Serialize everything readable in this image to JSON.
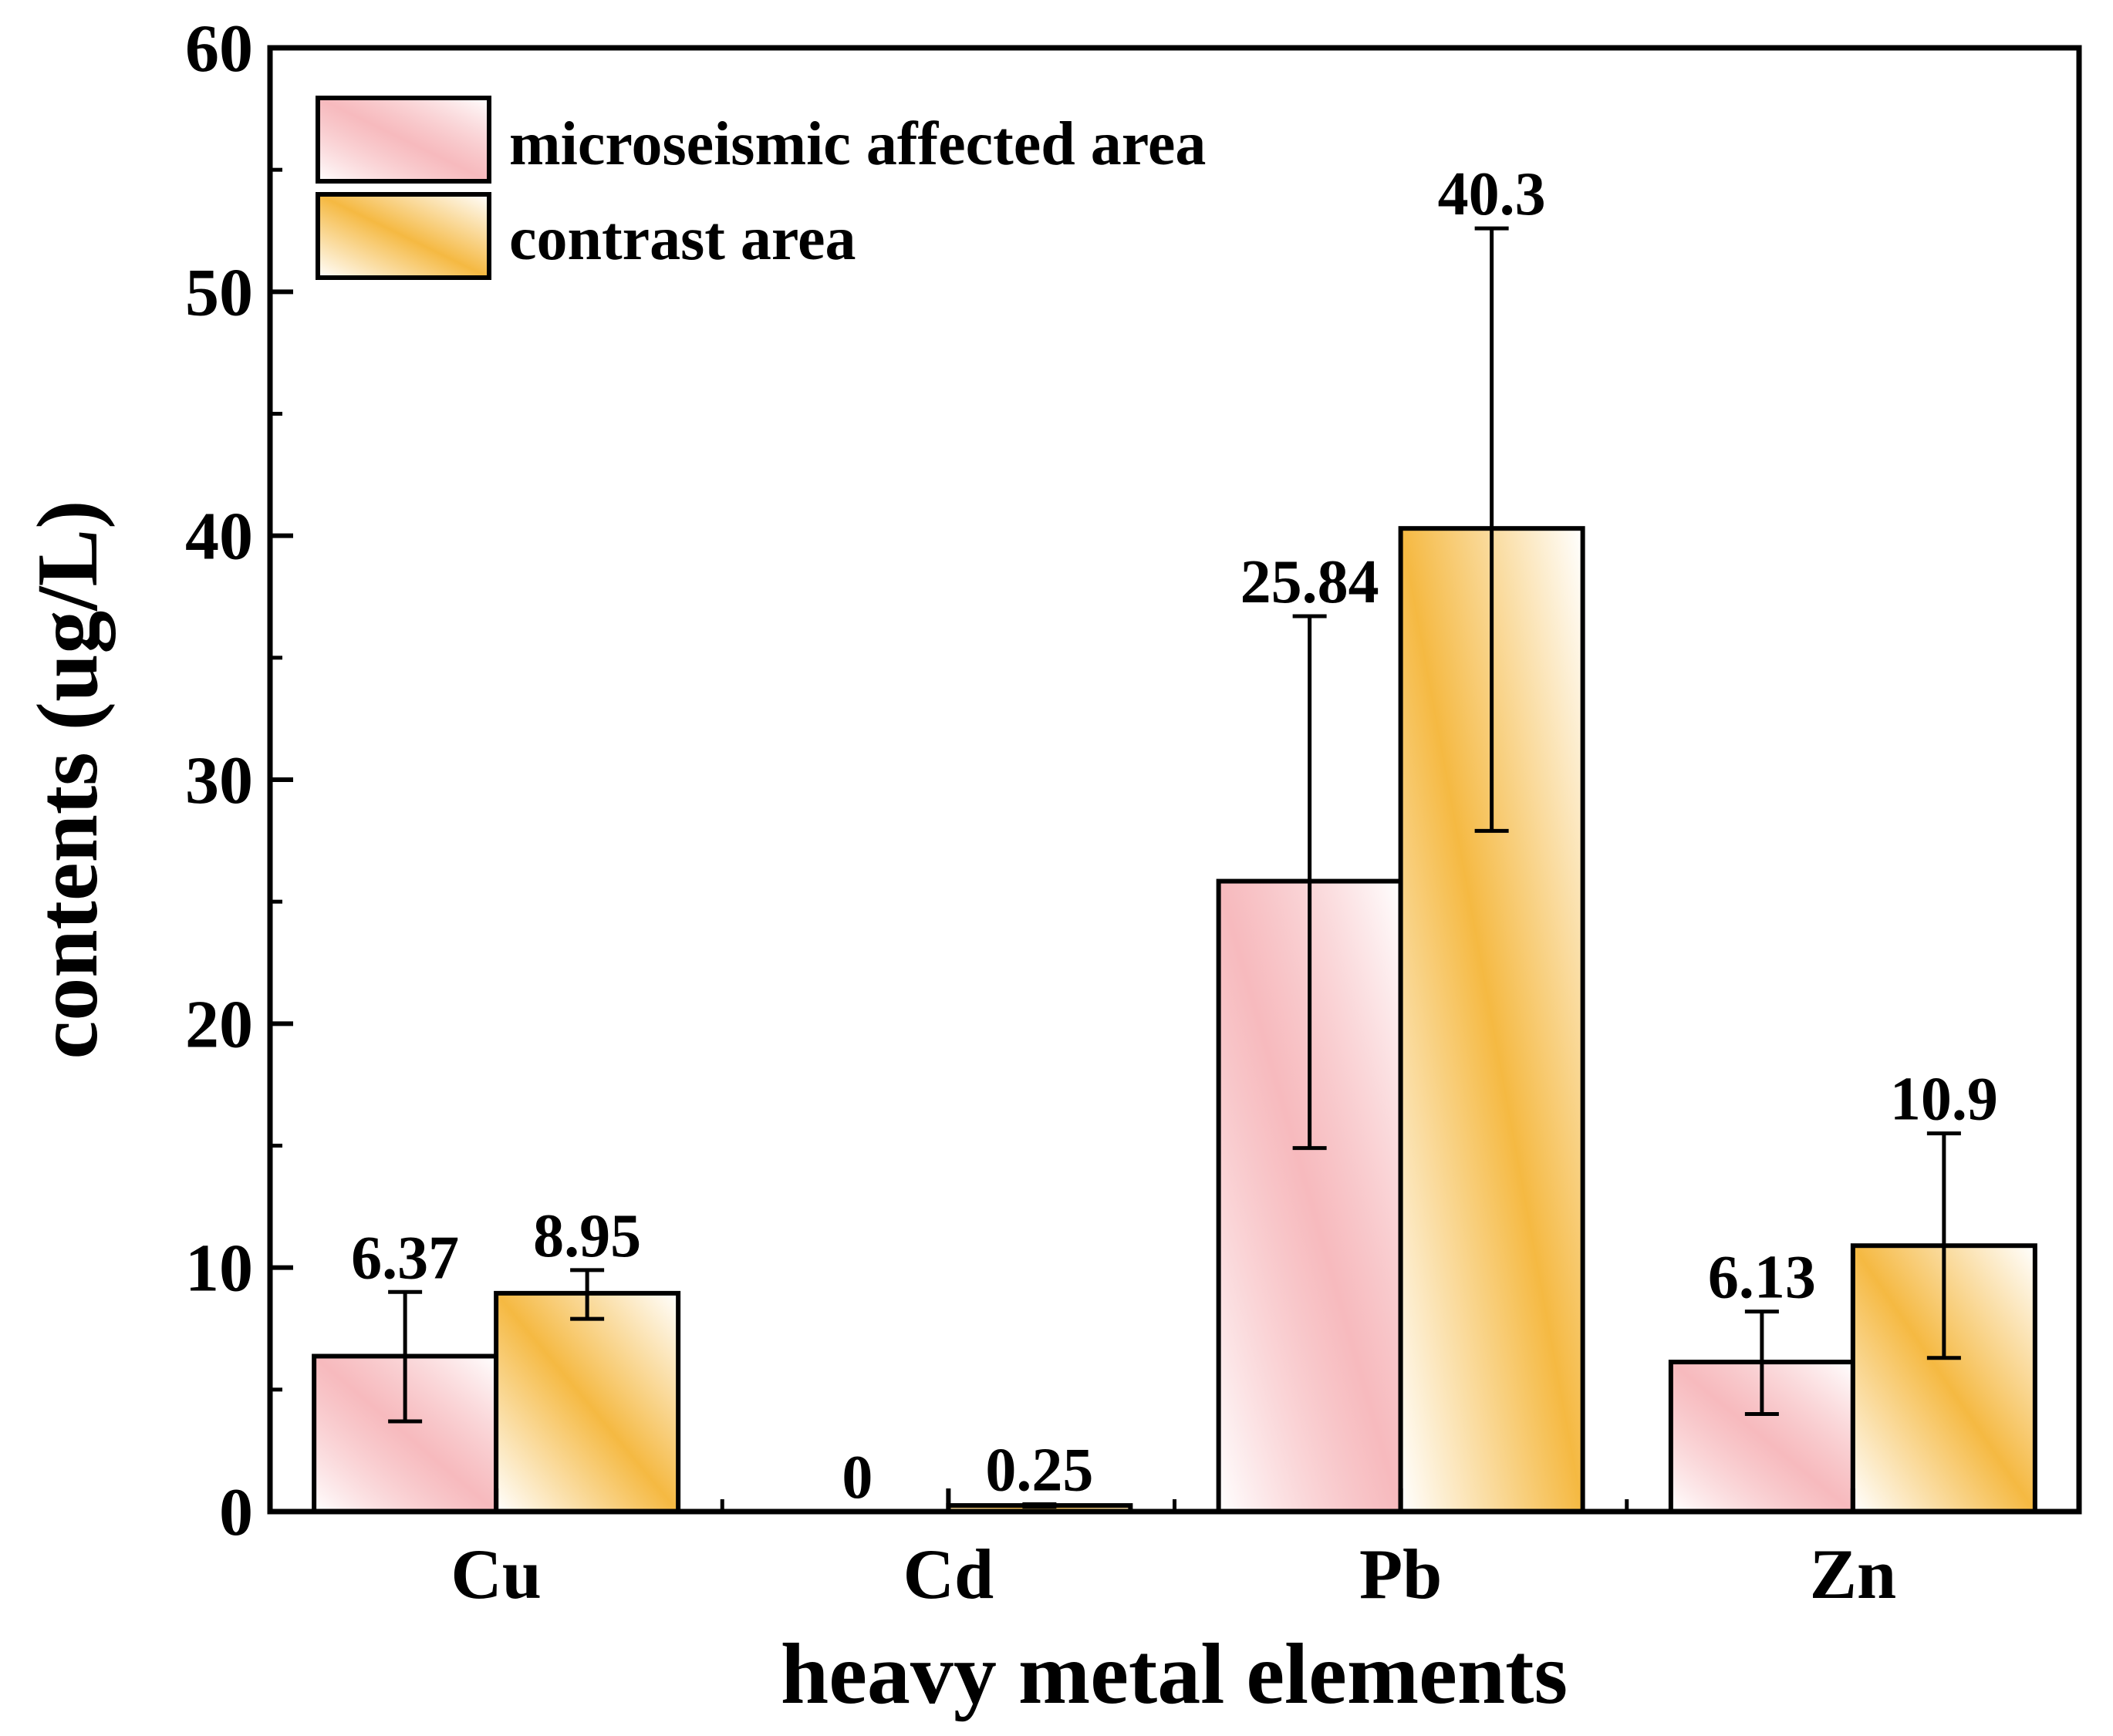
{
  "chart_data": {
    "type": "bar",
    "title": "",
    "xlabel": "heavy metal elements",
    "ylabel": "contents (ug/L)",
    "ylim": [
      0,
      60
    ],
    "yticks": [
      0,
      10,
      20,
      30,
      40,
      50,
      60
    ],
    "categories": [
      "Cu",
      "Cd",
      "Pb",
      "Zn"
    ],
    "legend_position": "top-left",
    "series": [
      {
        "name": "microseismic affected area",
        "color": "#f4a3a8",
        "values": [
          6.37,
          0,
          25.84,
          6.13
        ],
        "labels": [
          "6.37",
          "0",
          "25.84",
          "6.13"
        ],
        "error_low": [
          3.7,
          0,
          14.9,
          4.0
        ],
        "error_high": [
          9.0,
          0,
          36.7,
          8.2
        ]
      },
      {
        "name": "contrast area",
        "color": "#f5b942",
        "values": [
          8.95,
          0.25,
          40.3,
          10.9
        ],
        "labels": [
          "8.95",
          "0.25",
          "40.3",
          "10.9"
        ],
        "error_low": [
          7.9,
          0.2,
          27.9,
          6.3
        ],
        "error_high": [
          9.9,
          0.3,
          52.6,
          15.5
        ]
      }
    ]
  }
}
